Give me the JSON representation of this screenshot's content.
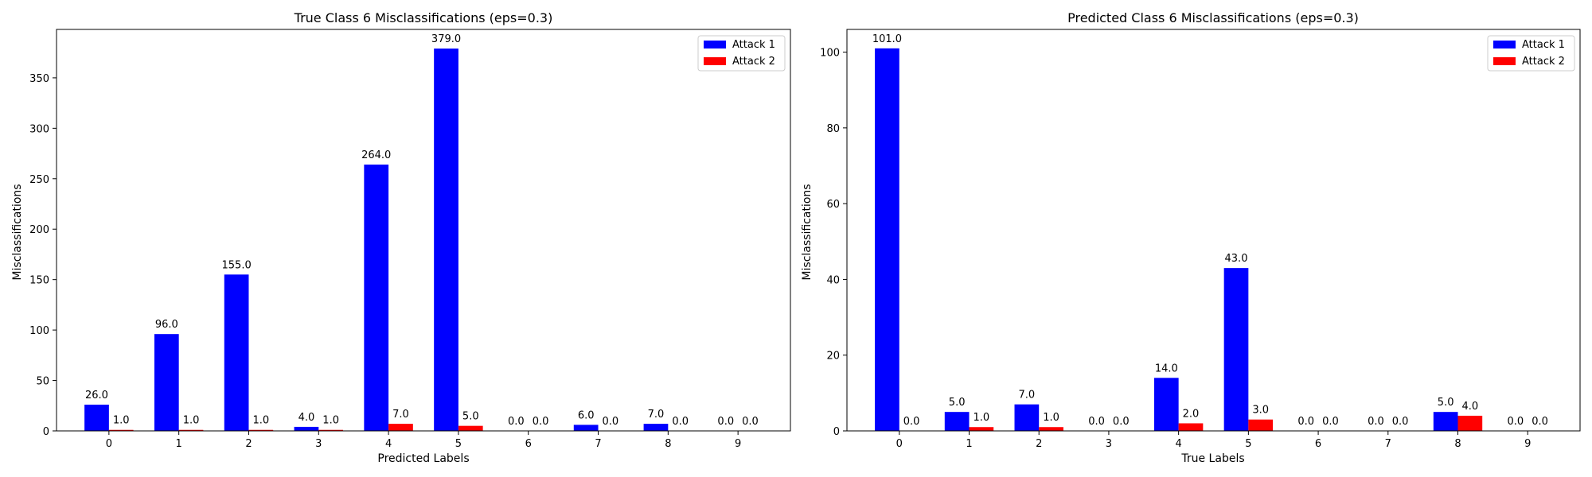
{
  "chart_data": [
    {
      "type": "bar",
      "title": "True Class 6 Misclassifications (eps=0.3)",
      "xlabel": "Predicted Labels",
      "ylabel": "Misclassifications",
      "categories": [
        "0",
        "1",
        "2",
        "3",
        "4",
        "5",
        "6",
        "7",
        "8",
        "9"
      ],
      "series": [
        {
          "name": "Attack 1",
          "color": "#0000ff",
          "values": [
            26,
            96,
            155,
            4,
            264,
            379,
            0,
            6,
            7,
            0
          ],
          "labels": [
            "26.0",
            "96.0",
            "155.0",
            "4.0",
            "264.0",
            "379.0",
            "0.0",
            "6.0",
            "7.0",
            "0.0"
          ]
        },
        {
          "name": "Attack 2",
          "color": "#ff0000",
          "values": [
            1,
            1,
            1,
            1,
            7,
            5,
            0,
            0,
            0,
            0
          ],
          "labels": [
            "1.0",
            "1.0",
            "1.0",
            "1.0",
            "7.0",
            "5.0",
            "0.0",
            "0.0",
            "0.0",
            "0.0"
          ]
        }
      ],
      "ylim": [
        0,
        398
      ],
      "yticks": [
        0,
        50,
        100,
        150,
        200,
        250,
        300,
        350
      ],
      "ytick_labels": [
        "0",
        "50",
        "100",
        "150",
        "200",
        "250",
        "300",
        "350"
      ],
      "legend": "top-right",
      "grid": false
    },
    {
      "type": "bar",
      "title": "Predicted Class 6 Misclassifications (eps=0.3)",
      "xlabel": "True Labels",
      "ylabel": "Misclassifications",
      "categories": [
        "0",
        "1",
        "2",
        "3",
        "4",
        "5",
        "6",
        "7",
        "8",
        "9"
      ],
      "series": [
        {
          "name": "Attack 1",
          "color": "#0000ff",
          "values": [
            101,
            5,
            7,
            0,
            14,
            43,
            0,
            0,
            5,
            0
          ],
          "labels": [
            "101.0",
            "5.0",
            "7.0",
            "0.0",
            "14.0",
            "43.0",
            "0.0",
            "0.0",
            "5.0",
            "0.0"
          ]
        },
        {
          "name": "Attack 2",
          "color": "#ff0000",
          "values": [
            0,
            1,
            1,
            0,
            2,
            3,
            0,
            0,
            4,
            0
          ],
          "labels": [
            "0.0",
            "1.0",
            "1.0",
            "0.0",
            "2.0",
            "3.0",
            "0.0",
            "0.0",
            "4.0",
            "0.0"
          ]
        }
      ],
      "ylim": [
        0,
        106
      ],
      "yticks": [
        0,
        20,
        40,
        60,
        80,
        100
      ],
      "ytick_labels": [
        "0",
        "20",
        "40",
        "60",
        "80",
        "100"
      ],
      "legend": "top-right",
      "grid": false
    }
  ]
}
